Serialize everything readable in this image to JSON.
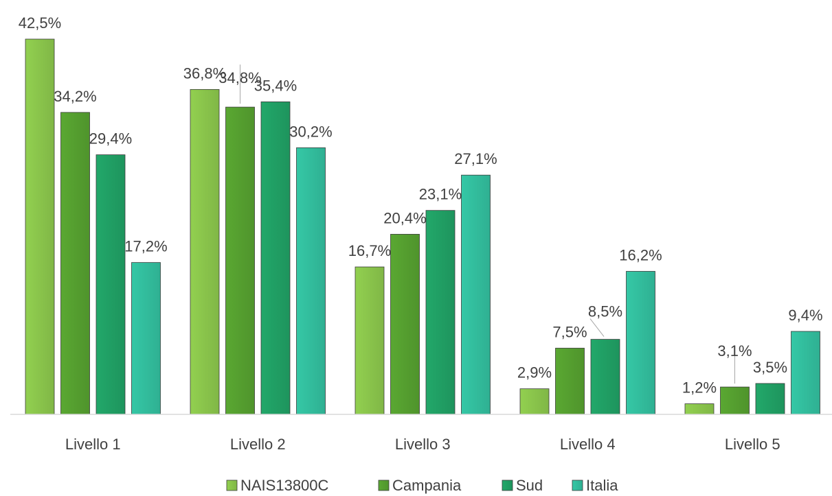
{
  "chart_data": {
    "type": "bar",
    "title": "",
    "xlabel": "",
    "ylabel": "",
    "ylim": [
      0,
      42.5
    ],
    "grid": false,
    "legend_position": "bottom",
    "categories": [
      "Livello 1",
      "Livello 2",
      "Livello 3",
      "Livello 4",
      "Livello 5"
    ],
    "series": [
      {
        "name": "NAIS13800C",
        "color": "#92d050",
        "values": [
          42.5,
          36.8,
          16.7,
          2.9,
          1.2
        ],
        "labels": [
          "42,5%",
          "36,8%",
          "16,7%",
          "2,9%",
          "1,2%"
        ]
      },
      {
        "name": "Campania",
        "color": "#5aa832",
        "values": [
          34.2,
          34.8,
          20.4,
          7.5,
          3.1
        ],
        "labels": [
          "34,2%",
          "34,8%",
          "20,4%",
          "7,5%",
          "3,1%"
        ]
      },
      {
        "name": "Sud",
        "color": "#22a86a",
        "values": [
          29.4,
          35.4,
          23.1,
          8.5,
          3.5
        ],
        "labels": [
          "29,4%",
          "35,4%",
          "23,1%",
          "8,5%",
          "3,5%"
        ]
      },
      {
        "name": "Italia",
        "color": "#35c8a6",
        "values": [
          17.2,
          30.2,
          27.1,
          16.2,
          9.4
        ],
        "labels": [
          "17,2%",
          "30,2%",
          "27,1%",
          "16,2%",
          "9,4%"
        ]
      }
    ]
  }
}
